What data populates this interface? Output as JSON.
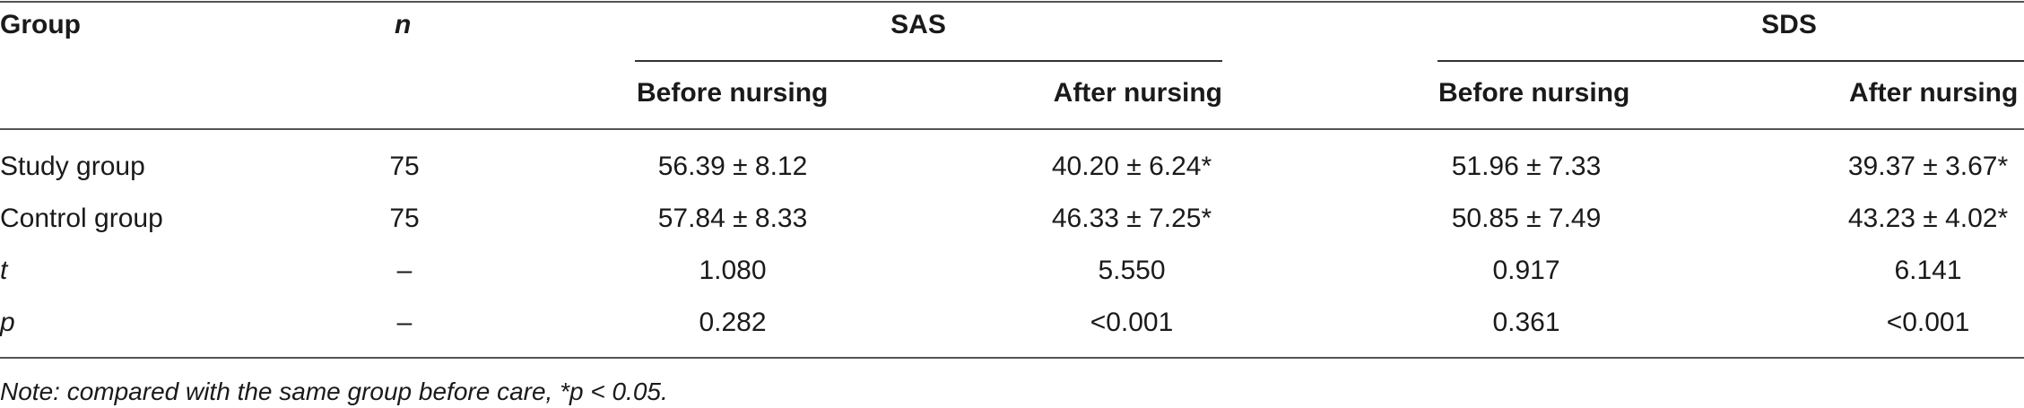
{
  "table": {
    "headers": {
      "group": "Group",
      "n": "n",
      "sas": "SAS",
      "sds": "SDS",
      "sas_before": "Before nursing",
      "sas_after": "After nursing",
      "sds_before": "Before nursing",
      "sds_after": "After nursing"
    },
    "rows": [
      {
        "group": "Study group",
        "n": "75",
        "sas_before": "56.39 ± 8.12",
        "sas_after": "40.20 ± 6.24*",
        "sds_before": "51.96 ± 7.33",
        "sds_after": "39.37 ± 3.67*"
      },
      {
        "group": "Control group",
        "n": "75",
        "sas_before": "57.84 ± 8.33",
        "sas_after": "46.33 ± 7.25*",
        "sds_before": "50.85 ± 7.49",
        "sds_after": "43.23 ± 4.02*"
      },
      {
        "group": "t",
        "n": "–",
        "sas_before": "1.080",
        "sas_after": "5.550",
        "sds_before": "0.917",
        "sds_after": "6.141"
      },
      {
        "group": "p",
        "n": "–",
        "sas_before": "0.282",
        "sas_after": "<0.001",
        "sds_before": "0.361",
        "sds_after": "<0.001"
      }
    ],
    "note": "Note: compared with the same group before care, *p < 0.05."
  }
}
